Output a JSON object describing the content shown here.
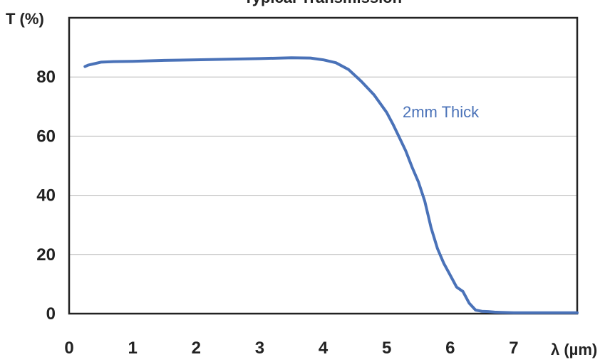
{
  "chart_data": {
    "type": "line",
    "title_fragment": "Typical Transmission",
    "xlabel": "λ (µm)",
    "ylabel": "T (%)",
    "xlim": [
      0,
      8
    ],
    "ylim": [
      0,
      100
    ],
    "x_ticks": [
      "0",
      "1",
      "2",
      "3",
      "4",
      "5",
      "6",
      "7"
    ],
    "y_ticks": [
      "0",
      "20",
      "40",
      "60",
      "80"
    ],
    "grid": "horizontal",
    "line_color": "#4a72b8",
    "series": [
      {
        "annotation": "2mm Thick",
        "x": [
          0.25,
          0.3,
          0.4,
          0.5,
          0.7,
          1.0,
          1.5,
          2.0,
          2.5,
          3.0,
          3.5,
          3.8,
          4.0,
          4.2,
          4.4,
          4.6,
          4.8,
          5.0,
          5.1,
          5.2,
          5.3,
          5.4,
          5.5,
          5.6,
          5.7,
          5.8,
          5.9,
          6.0,
          6.1,
          6.2,
          6.3,
          6.4,
          6.5,
          6.6,
          6.7,
          6.8,
          7.0,
          7.5,
          8.0
        ],
        "y": [
          83.5,
          84,
          84.5,
          85,
          85.2,
          85.3,
          85.6,
          85.8,
          86,
          86.2,
          86.5,
          86.4,
          85.8,
          84.8,
          82.5,
          78.5,
          74,
          68,
          64,
          59.5,
          55,
          49.5,
          44.5,
          38,
          29,
          22,
          17,
          13,
          9,
          7.5,
          3.5,
          1.2,
          0.8,
          0.7,
          0.5,
          0.4,
          0.3,
          0.3,
          0.3
        ]
      }
    ]
  }
}
